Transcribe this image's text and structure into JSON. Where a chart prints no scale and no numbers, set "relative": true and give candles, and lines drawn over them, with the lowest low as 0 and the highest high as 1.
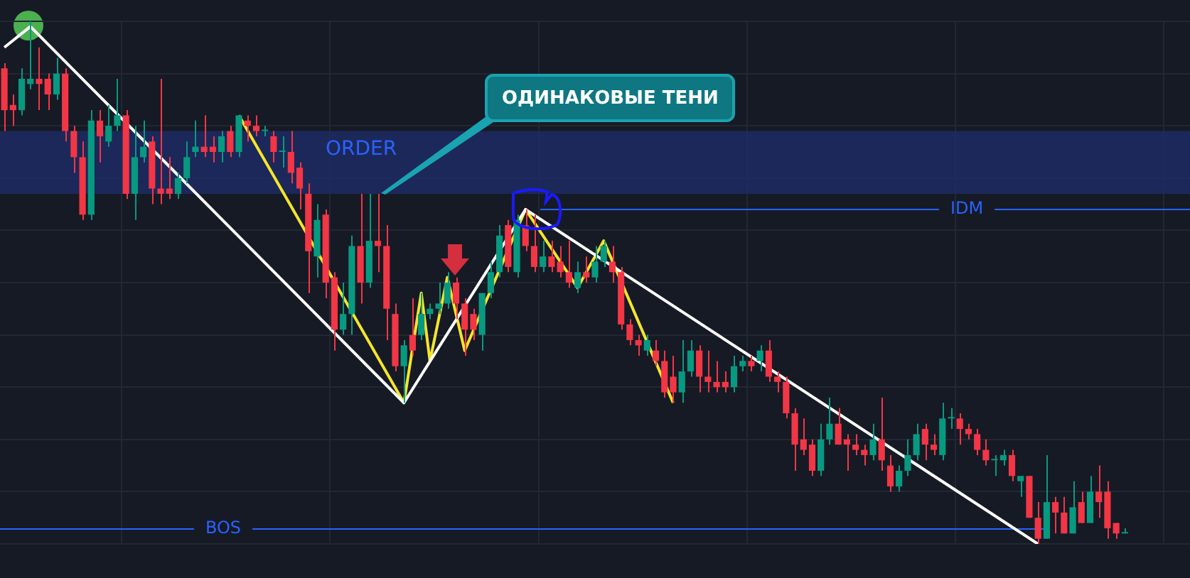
{
  "chart_data": {
    "type": "candlestick",
    "relative": true,
    "grid": true,
    "legend": false,
    "categories": [
      null,
      null,
      null,
      null,
      null,
      null,
      null,
      null,
      null,
      null,
      null,
      null,
      null,
      null,
      null,
      null,
      null,
      null,
      null,
      null,
      null,
      null,
      null,
      null,
      null,
      null,
      null,
      null,
      null,
      null,
      null,
      null,
      null,
      null,
      null,
      null,
      null,
      null,
      null,
      null,
      null,
      null,
      null,
      null,
      null,
      null,
      null,
      null,
      null,
      null,
      null,
      null,
      null,
      null,
      null,
      null,
      null,
      null,
      null,
      null,
      null,
      null,
      null,
      null,
      null,
      null,
      null,
      null,
      null,
      null,
      null,
      null,
      null,
      null,
      null,
      null,
      null,
      null,
      null,
      null,
      null,
      null,
      null,
      null,
      null,
      null,
      null,
      null,
      null,
      null,
      null,
      null,
      null,
      null,
      null,
      null,
      null,
      null,
      null,
      null,
      null,
      null,
      null,
      null,
      null,
      null,
      null,
      null,
      null,
      null,
      null,
      null,
      null,
      null,
      null,
      null,
      null,
      null,
      null,
      null,
      null,
      null,
      null,
      null,
      null,
      null,
      null,
      null,
      null,
      null,
      null,
      null,
      null,
      null,
      null,
      null,
      null
    ],
    "ohlc": [
      [
        0.91,
        0.92,
        0.79,
        0.83
      ],
      [
        0.84,
        0.86,
        0.8,
        0.83
      ],
      [
        0.83,
        0.91,
        0.82,
        0.89
      ],
      [
        0.88,
        1,
        0.87,
        0.89
      ],
      [
        0.89,
        0.95,
        0.83,
        0.88
      ],
      [
        0.89,
        0.9,
        0.83,
        0.86
      ],
      [
        0.86,
        0.93,
        0.85,
        0.9
      ],
      [
        0.9,
        0.91,
        0.77,
        0.79
      ],
      [
        0.79,
        0.8,
        0.71,
        0.74
      ],
      [
        0.74,
        0.77,
        0.62,
        0.63
      ],
      [
        0.63,
        0.83,
        0.62,
        0.81
      ],
      [
        0.81,
        0.83,
        0.73,
        0.78
      ],
      [
        0.77,
        0.84,
        0.76,
        0.8
      ],
      [
        0.8,
        0.89,
        0.79,
        0.82
      ],
      [
        0.82,
        0.83,
        0.66,
        0.67
      ],
      [
        0.67,
        0.8,
        0.62,
        0.74
      ],
      [
        0.74,
        0.81,
        0.73,
        0.76
      ],
      [
        0.77,
        0.78,
        0.65,
        0.68
      ],
      [
        0.68,
        0.89,
        0.65,
        0.67
      ],
      [
        0.68,
        0.74,
        0.66,
        0.67
      ],
      [
        0.67,
        0.71,
        0.66,
        0.7
      ],
      [
        0.7,
        0.77,
        0.69,
        0.74
      ],
      [
        0.75,
        0.81,
        0.74,
        0.76
      ],
      [
        0.76,
        0.82,
        0.74,
        0.75
      ],
      [
        0.76,
        0.78,
        0.73,
        0.75
      ],
      [
        0.75,
        0.79,
        0.73,
        0.78
      ],
      [
        0.79,
        0.8,
        0.74,
        0.75
      ],
      [
        0.75,
        0.82,
        0.74,
        0.82
      ],
      [
        0.81,
        0.82,
        0.77,
        0.8
      ],
      [
        0.8,
        0.82,
        0.78,
        0.79
      ],
      [
        0.79,
        0.8,
        0.78,
        0.79
      ],
      [
        0.78,
        0.79,
        0.73,
        0.75
      ],
      [
        0.75,
        0.78,
        0.72,
        0.75
      ],
      [
        0.75,
        0.79,
        0.69,
        0.71
      ],
      [
        0.72,
        0.73,
        0.64,
        0.68
      ],
      [
        0.67,
        0.69,
        0.48,
        0.56
      ],
      [
        0.55,
        0.65,
        0.51,
        0.62
      ],
      [
        0.63,
        0.64,
        0.47,
        0.5
      ],
      [
        0.51,
        0.52,
        0.37,
        0.41
      ],
      [
        0.41,
        0.5,
        0.4,
        0.44
      ],
      [
        0.44,
        0.59,
        0.4,
        0.57
      ],
      [
        0.57,
        0.67,
        0.46,
        0.5
      ],
      [
        0.5,
        0.67,
        0.49,
        0.58
      ],
      [
        0.58,
        0.67,
        0.52,
        0.57
      ],
      [
        0.57,
        0.61,
        0.39,
        0.45
      ],
      [
        0.44,
        0.46,
        0.33,
        0.34
      ],
      [
        0.34,
        0.39,
        0.27,
        0.38
      ],
      [
        0.4,
        0.47,
        0.36,
        0.37
      ],
      [
        0.4,
        0.48,
        0.39,
        0.44
      ],
      [
        0.44,
        0.46,
        0.43,
        0.45
      ],
      [
        0.45,
        0.5,
        0.44,
        0.46
      ],
      [
        0.46,
        0.52,
        0.45,
        0.5
      ],
      [
        0.5,
        0.51,
        0.43,
        0.46
      ],
      [
        0.46,
        0.47,
        0.36,
        0.41
      ],
      [
        0.44,
        0.45,
        0.39,
        0.41
      ],
      [
        0.4,
        0.48,
        0.37,
        0.48
      ],
      [
        0.48,
        0.54,
        0.47,
        0.52
      ],
      [
        0.52,
        0.61,
        0.51,
        0.59
      ],
      [
        0.61,
        0.62,
        0.52,
        0.53
      ],
      [
        0.52,
        0.63,
        0.51,
        0.62
      ],
      [
        0.61,
        0.64,
        0.56,
        0.57
      ],
      [
        0.57,
        0.63,
        0.52,
        0.53
      ],
      [
        0.53,
        0.58,
        0.52,
        0.55
      ],
      [
        0.55,
        0.58,
        0.52,
        0.53
      ],
      [
        0.54,
        0.57,
        0.51,
        0.52
      ],
      [
        0.52,
        0.58,
        0.49,
        0.5
      ],
      [
        0.49,
        0.54,
        0.48,
        0.52
      ],
      [
        0.52,
        0.55,
        0.5,
        0.51
      ],
      [
        0.51,
        0.57,
        0.5,
        0.54
      ],
      [
        0.54,
        0.58,
        0.53,
        0.57
      ],
      [
        0.54,
        0.57,
        0.5,
        0.52
      ],
      [
        0.52,
        0.53,
        0.41,
        0.42
      ],
      [
        0.42,
        0.43,
        0.38,
        0.39
      ],
      [
        0.39,
        0.4,
        0.36,
        0.38
      ],
      [
        0.37,
        0.4,
        0.36,
        0.39
      ],
      [
        0.37,
        0.39,
        0.34,
        0.35
      ],
      [
        0.35,
        0.37,
        0.28,
        0.29
      ],
      [
        0.32,
        0.36,
        0.27,
        0.29
      ],
      [
        0.29,
        0.39,
        0.27,
        0.33
      ],
      [
        0.33,
        0.39,
        0.32,
        0.37
      ],
      [
        0.37,
        0.38,
        0.29,
        0.32
      ],
      [
        0.32,
        0.37,
        0.29,
        0.31
      ],
      [
        0.31,
        0.35,
        0.29,
        0.3
      ],
      [
        0.31,
        0.33,
        0.29,
        0.3
      ],
      [
        0.3,
        0.36,
        0.29,
        0.34
      ],
      [
        0.34,
        0.36,
        0.33,
        0.35
      ],
      [
        0.35,
        0.36,
        0.33,
        0.34
      ],
      [
        0.35,
        0.38,
        0.33,
        0.37
      ],
      [
        0.37,
        0.39,
        0.31,
        0.32
      ],
      [
        0.32,
        0.33,
        0.29,
        0.31
      ],
      [
        0.31,
        0.32,
        0.24,
        0.25
      ],
      [
        0.25,
        0.26,
        0.14,
        0.19
      ],
      [
        0.2,
        0.24,
        0.17,
        0.18
      ],
      [
        0.19,
        0.2,
        0.13,
        0.14
      ],
      [
        0.14,
        0.23,
        0.13,
        0.2
      ],
      [
        0.2,
        0.28,
        0.19,
        0.23
      ],
      [
        0.23,
        0.26,
        0.19,
        0.19
      ],
      [
        0.2,
        0.21,
        0.14,
        0.19
      ],
      [
        0.19,
        0.21,
        0.17,
        0.18
      ],
      [
        0.18,
        0.19,
        0.15,
        0.17
      ],
      [
        0.17,
        0.23,
        0.16,
        0.2
      ],
      [
        0.2,
        0.28,
        0.14,
        0.16
      ],
      [
        0.15,
        0.17,
        0.1,
        0.11
      ],
      [
        0.11,
        0.15,
        0.1,
        0.14
      ],
      [
        0.14,
        0.2,
        0.13,
        0.17
      ],
      [
        0.17,
        0.23,
        0.16,
        0.21
      ],
      [
        0.22,
        0.23,
        0.16,
        0.19
      ],
      [
        0.19,
        0.21,
        0.17,
        0.18
      ],
      [
        0.17,
        0.27,
        0.16,
        0.24
      ],
      [
        0.24,
        0.26,
        0.22,
        0.24
      ],
      [
        0.24,
        0.25,
        0.19,
        0.22
      ],
      [
        0.22,
        0.23,
        0.2,
        0.21
      ],
      [
        0.21,
        0.22,
        0.17,
        0.18
      ],
      [
        0.18,
        0.2,
        0.15,
        0.16
      ],
      [
        0.16,
        0.17,
        0.13,
        0.16
      ],
      [
        0.16,
        0.18,
        0.15,
        0.17
      ],
      [
        0.17,
        0.18,
        0.12,
        0.13
      ],
      [
        0.12,
        0.13,
        0.09,
        0.13
      ],
      [
        0.13,
        0.13,
        0.05,
        0.05
      ],
      [
        0.05,
        0.08,
        0,
        0.01
      ],
      [
        0.01,
        0.17,
        0.01,
        0.08
      ],
      [
        0.08,
        0.09,
        0.02,
        0.06
      ],
      [
        0.06,
        0.09,
        0.02,
        0.02
      ],
      [
        0.02,
        0.12,
        0.02,
        0.07
      ],
      [
        0.08,
        0.1,
        0.04,
        0.04
      ],
      [
        0.04,
        0.13,
        0.04,
        0.1
      ],
      [
        0.1,
        0.15,
        0.05,
        0.08
      ],
      [
        0.1,
        0.12,
        0.01,
        0.03
      ],
      [
        0.04,
        0.04,
        0.01,
        0.02
      ],
      [
        0.02,
        0.03,
        0.02,
        0.02
      ],
      null,
      null,
      null,
      null,
      null,
      null,
      null
    ],
    "series": [
      {
        "type": "line",
        "color": "#ffffff",
        "values": [
          0.95,
          null,
          null,
          0.99,
          null,
          null,
          null,
          null,
          null,
          null,
          null,
          null,
          null,
          null,
          null,
          null,
          null,
          null,
          null,
          null,
          null,
          null,
          null,
          null,
          null,
          null,
          null,
          null,
          null,
          null,
          null,
          null,
          null,
          null,
          null,
          null,
          null,
          null,
          null,
          null,
          null,
          null,
          null,
          null,
          null,
          null,
          0.27,
          null,
          null,
          null,
          null,
          null,
          null,
          null,
          null,
          null,
          null,
          null,
          null,
          null,
          0.64,
          null,
          null,
          null,
          null,
          null,
          null,
          null,
          null,
          null,
          null,
          null,
          null,
          null,
          null,
          null,
          null,
          null,
          null,
          null,
          null,
          null,
          null,
          null,
          null,
          null,
          null,
          null,
          null,
          null,
          null,
          null,
          null,
          null,
          null,
          null,
          null,
          null,
          null,
          null,
          null,
          null,
          null,
          null,
          null,
          null,
          null,
          null,
          null,
          null,
          null,
          null,
          null,
          null,
          null,
          null,
          null,
          null,
          null,
          0,
          null,
          null,
          null,
          null,
          null,
          null,
          null,
          null,
          null,
          null,
          null,
          null,
          null,
          null,
          null,
          null,
          null
        ]
      },
      {
        "type": "line",
        "color": "#f5e52a",
        "values": [
          null,
          null,
          null,
          null,
          null,
          null,
          null,
          null,
          null,
          null,
          null,
          null,
          null,
          null,
          null,
          null,
          null,
          null,
          null,
          null,
          null,
          null,
          null,
          null,
          null,
          null,
          null,
          0.82,
          null,
          null,
          null,
          null,
          null,
          null,
          null,
          null,
          null,
          null,
          null,
          null,
          null,
          null,
          null,
          null,
          null,
          null,
          0.27,
          null,
          0.48,
          0.35,
          null,
          0.51,
          null,
          0.37,
          null,
          null,
          null,
          null,
          null,
          null,
          0.64,
          null,
          null,
          null,
          null,
          null,
          0.49,
          null,
          null,
          0.58,
          null,
          null,
          null,
          null,
          null,
          null,
          null,
          0.27,
          null,
          null,
          null,
          null,
          null,
          null,
          null,
          null,
          null,
          null,
          null,
          null,
          null,
          null,
          null,
          null,
          null,
          null,
          null,
          null,
          null,
          null,
          null,
          null,
          null,
          null,
          null,
          null,
          null,
          null,
          null,
          null,
          null,
          null,
          null,
          null,
          null,
          null,
          null,
          null,
          null,
          null,
          null,
          null,
          null,
          null,
          null,
          null,
          null,
          null,
          null,
          null,
          null,
          null,
          null,
          null,
          null,
          null,
          null
        ]
      }
    ],
    "bands": [
      {
        "axis": "y",
        "from": 0.67,
        "to": 0.79,
        "label": "ORDER",
        "color": "#1d2c63"
      }
    ],
    "ref_lines": [
      {
        "axis": "y",
        "value": 0.64,
        "label": "IDM",
        "color": "#2962ff"
      },
      {
        "axis": "y",
        "value": 0.03,
        "label": "BOS",
        "color": "#2962ff"
      }
    ],
    "annotations": [
      "ОДИНАКОВЫЕ ТЕНИ"
    ]
  }
}
